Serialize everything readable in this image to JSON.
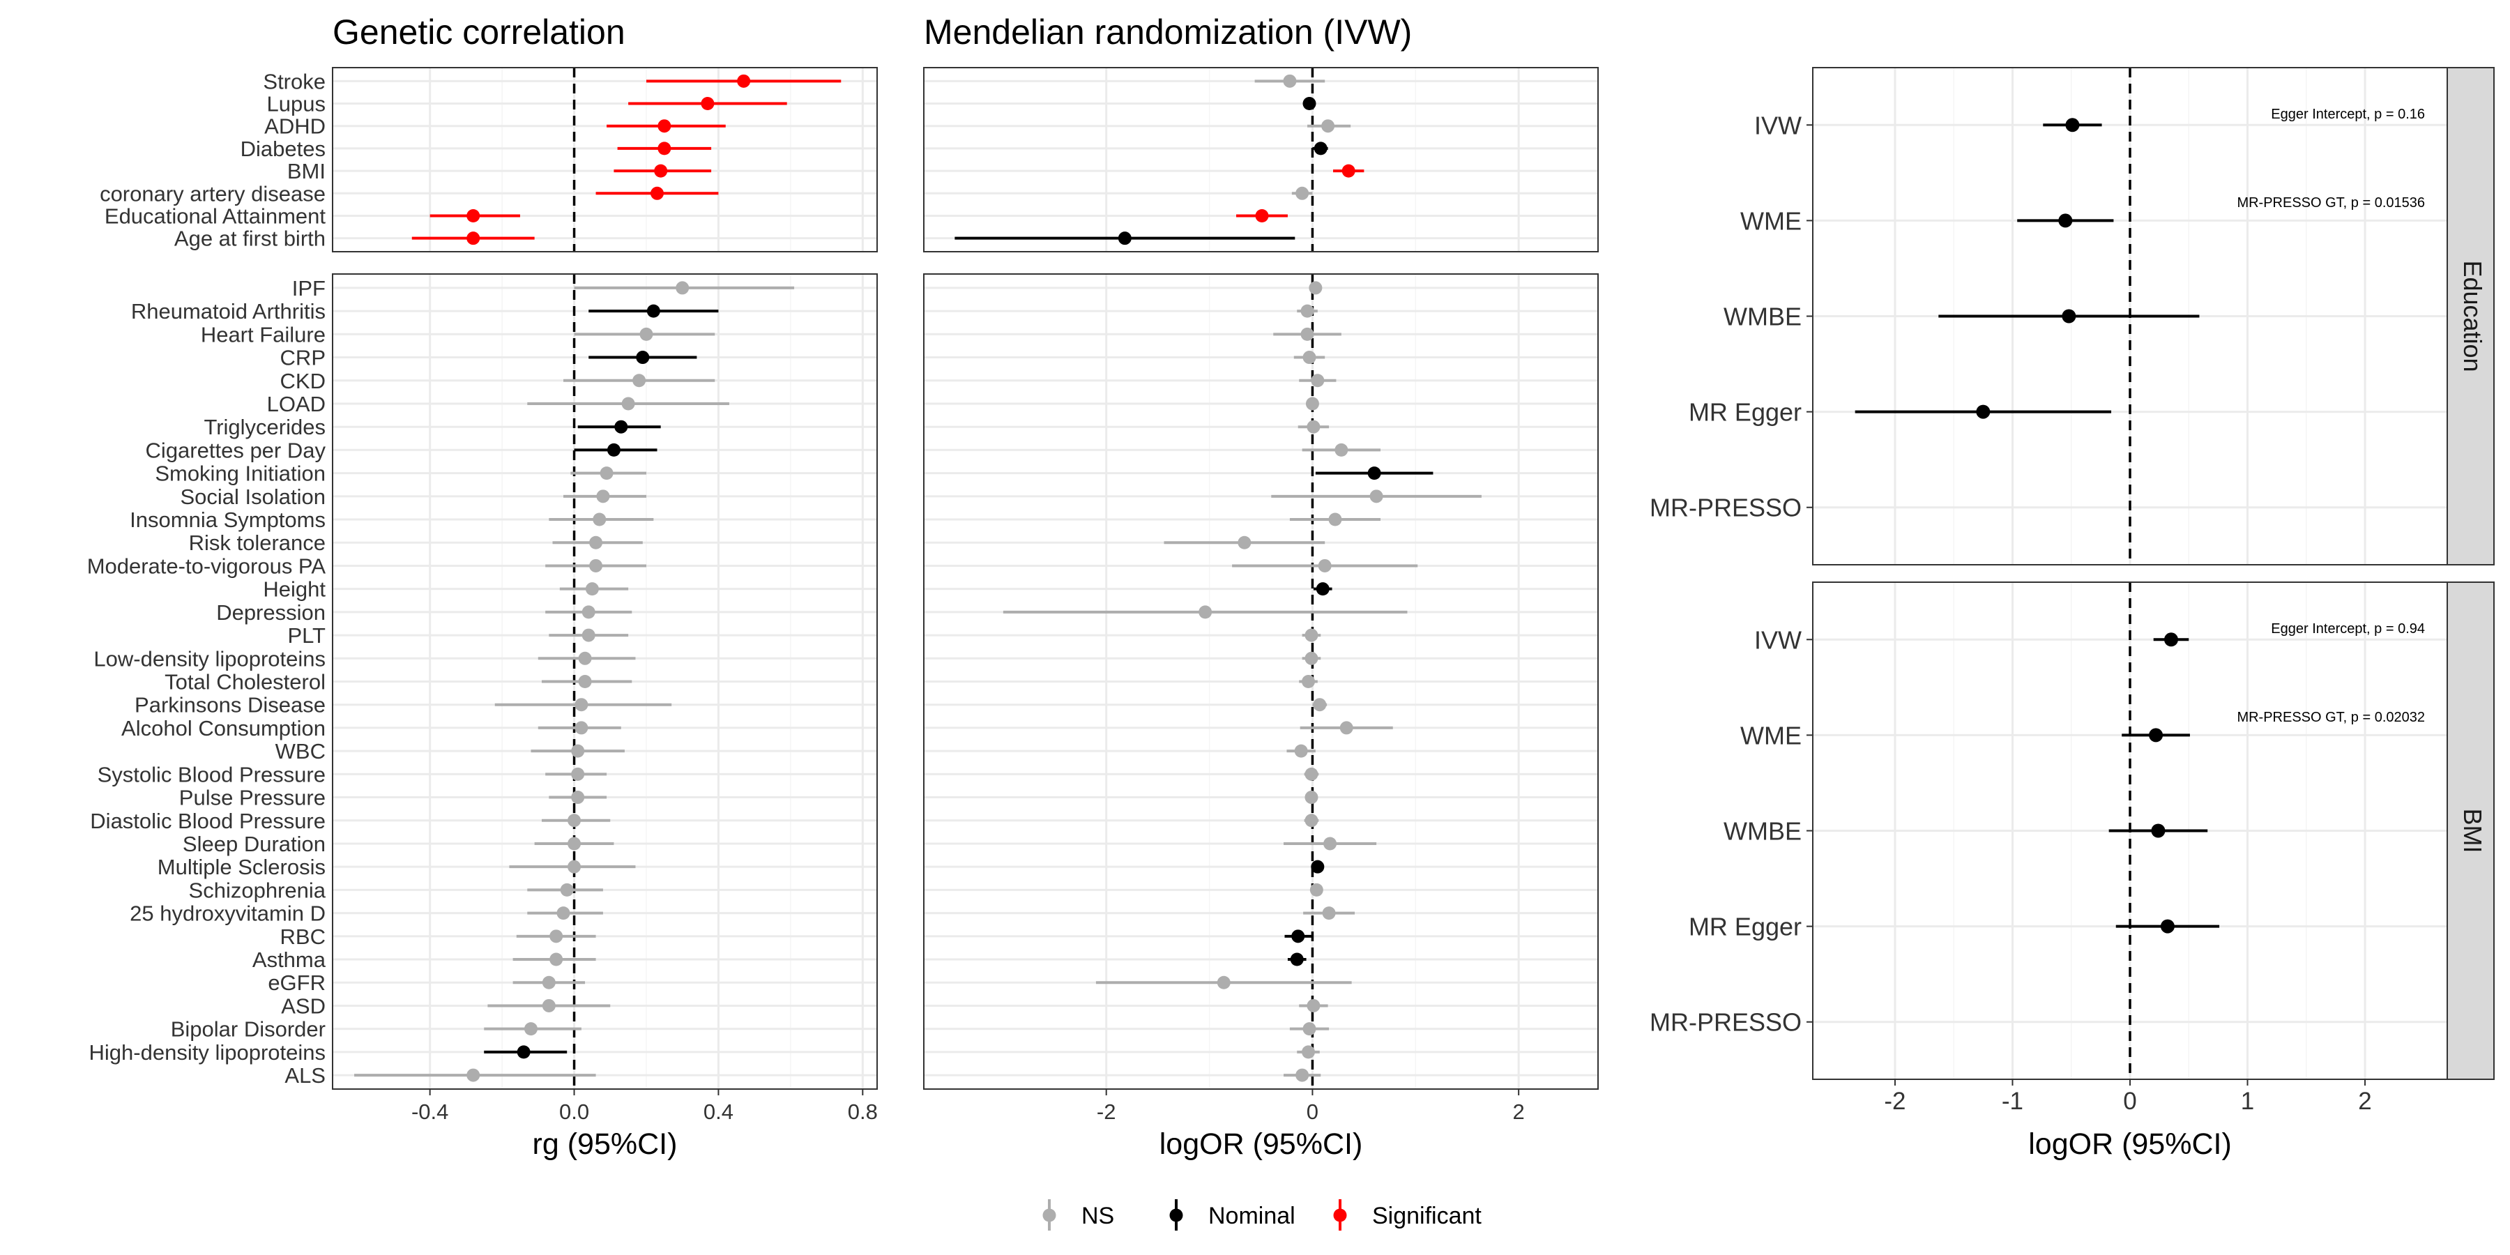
{
  "legend": {
    "items": [
      {
        "label": "NS",
        "color": "#ADADAD"
      },
      {
        "label": "Nominal",
        "color": "#000000"
      },
      {
        "label": "Significant",
        "color": "#FF0000"
      }
    ]
  },
  "chart_data": [
    {
      "type": "forest",
      "title": "Genetic correlation",
      "xlabel": "rg (95%CI)",
      "xlim": [
        -0.67,
        0.84
      ],
      "xticks": [
        -0.4,
        0.0,
        0.4,
        0.8
      ],
      "xtick_labels": [
        "-0.4",
        "0.0",
        "0.4",
        "0.8"
      ],
      "reference_line": 0,
      "panels": [
        {
          "rows": [
            {
              "label": "Stroke",
              "est": 0.47,
              "lo": 0.2,
              "hi": 0.74,
              "status": "Significant"
            },
            {
              "label": "Lupus",
              "est": 0.37,
              "lo": 0.15,
              "hi": 0.59,
              "status": "Significant"
            },
            {
              "label": "ADHD",
              "est": 0.25,
              "lo": 0.09,
              "hi": 0.42,
              "status": "Significant"
            },
            {
              "label": "Diabetes",
              "est": 0.25,
              "lo": 0.12,
              "hi": 0.38,
              "status": "Significant"
            },
            {
              "label": "BMI",
              "est": 0.24,
              "lo": 0.11,
              "hi": 0.38,
              "status": "Significant"
            },
            {
              "label": "coronary artery disease",
              "est": 0.23,
              "lo": 0.06,
              "hi": 0.4,
              "status": "Significant"
            },
            {
              "label": "Educational Attainment",
              "est": -0.28,
              "lo": -0.4,
              "hi": -0.15,
              "status": "Significant"
            },
            {
              "label": "Age at first birth",
              "est": -0.28,
              "lo": -0.45,
              "hi": -0.11,
              "status": "Significant"
            }
          ]
        },
        {
          "rows": [
            {
              "label": "IPF",
              "est": 0.3,
              "lo": 0.0,
              "hi": 0.61,
              "status": "NS"
            },
            {
              "label": "Rheumatoid Arthritis",
              "est": 0.22,
              "lo": 0.04,
              "hi": 0.4,
              "status": "Nominal"
            },
            {
              "label": "Heart Failure",
              "est": 0.2,
              "lo": 0.0,
              "hi": 0.39,
              "status": "NS"
            },
            {
              "label": "CRP",
              "est": 0.19,
              "lo": 0.04,
              "hi": 0.34,
              "status": "Nominal"
            },
            {
              "label": "CKD",
              "est": 0.18,
              "lo": -0.03,
              "hi": 0.39,
              "status": "NS"
            },
            {
              "label": "LOAD",
              "est": 0.15,
              "lo": -0.13,
              "hi": 0.43,
              "status": "NS"
            },
            {
              "label": "Triglycerides",
              "est": 0.13,
              "lo": 0.01,
              "hi": 0.24,
              "status": "Nominal"
            },
            {
              "label": "Cigarettes per Day",
              "est": 0.11,
              "lo": 0.0,
              "hi": 0.23,
              "status": "Nominal"
            },
            {
              "label": "Smoking Initiation",
              "est": 0.09,
              "lo": -0.01,
              "hi": 0.2,
              "status": "NS"
            },
            {
              "label": "Social Isolation",
              "est": 0.08,
              "lo": -0.03,
              "hi": 0.2,
              "status": "NS"
            },
            {
              "label": "Insomnia Symptoms",
              "est": 0.07,
              "lo": -0.07,
              "hi": 0.22,
              "status": "NS"
            },
            {
              "label": "Risk tolerance",
              "est": 0.06,
              "lo": -0.06,
              "hi": 0.19,
              "status": "NS"
            },
            {
              "label": "Moderate-to-vigorous PA",
              "est": 0.06,
              "lo": -0.08,
              "hi": 0.2,
              "status": "NS"
            },
            {
              "label": "Height",
              "est": 0.05,
              "lo": -0.04,
              "hi": 0.15,
              "status": "NS"
            },
            {
              "label": "Depression",
              "est": 0.04,
              "lo": -0.08,
              "hi": 0.16,
              "status": "NS"
            },
            {
              "label": "PLT",
              "est": 0.04,
              "lo": -0.07,
              "hi": 0.15,
              "status": "NS"
            },
            {
              "label": "Low-density lipoproteins",
              "est": 0.03,
              "lo": -0.1,
              "hi": 0.17,
              "status": "NS"
            },
            {
              "label": "Total Cholesterol",
              "est": 0.03,
              "lo": -0.09,
              "hi": 0.16,
              "status": "NS"
            },
            {
              "label": "Parkinsons Disease",
              "est": 0.02,
              "lo": -0.22,
              "hi": 0.27,
              "status": "NS"
            },
            {
              "label": "Alcohol Consumption",
              "est": 0.02,
              "lo": -0.1,
              "hi": 0.13,
              "status": "NS"
            },
            {
              "label": "WBC",
              "est": 0.01,
              "lo": -0.12,
              "hi": 0.14,
              "status": "NS"
            },
            {
              "label": "Systolic Blood Pressure",
              "est": 0.01,
              "lo": -0.08,
              "hi": 0.09,
              "status": "NS"
            },
            {
              "label": "Pulse Pressure",
              "est": 0.01,
              "lo": -0.07,
              "hi": 0.09,
              "status": "NS"
            },
            {
              "label": "Diastolic Blood Pressure",
              "est": 0.0,
              "lo": -0.09,
              "hi": 0.1,
              "status": "NS"
            },
            {
              "label": "Sleep Duration",
              "est": 0.0,
              "lo": -0.11,
              "hi": 0.11,
              "status": "NS"
            },
            {
              "label": "Multiple Sclerosis",
              "est": 0.0,
              "lo": -0.18,
              "hi": 0.17,
              "status": "NS"
            },
            {
              "label": "Schizophrenia",
              "est": -0.02,
              "lo": -0.13,
              "hi": 0.08,
              "status": "NS"
            },
            {
              "label": "25 hydroxyvitamin D",
              "est": -0.03,
              "lo": -0.13,
              "hi": 0.08,
              "status": "NS"
            },
            {
              "label": "RBC",
              "est": -0.05,
              "lo": -0.16,
              "hi": 0.06,
              "status": "NS"
            },
            {
              "label": "Asthma",
              "est": -0.05,
              "lo": -0.17,
              "hi": 0.06,
              "status": "NS"
            },
            {
              "label": "eGFR",
              "est": -0.07,
              "lo": -0.17,
              "hi": 0.03,
              "status": "NS"
            },
            {
              "label": "ASD",
              "est": -0.07,
              "lo": -0.24,
              "hi": 0.1,
              "status": "NS"
            },
            {
              "label": "Bipolar Disorder",
              "est": -0.12,
              "lo": -0.25,
              "hi": 0.02,
              "status": "NS"
            },
            {
              "label": "High-density lipoproteins",
              "est": -0.14,
              "lo": -0.25,
              "hi": -0.02,
              "status": "Nominal"
            },
            {
              "label": "ALS",
              "est": -0.28,
              "lo": -0.61,
              "hi": 0.06,
              "status": "NS"
            }
          ]
        }
      ]
    },
    {
      "type": "forest",
      "title": "Mendelian randomization (IVW)",
      "xlabel": "logOR (95%CI)",
      "xlim": [
        -3.77,
        2.77
      ],
      "xticks": [
        -2,
        0,
        2
      ],
      "xtick_labels": [
        "-2",
        "0",
        "2"
      ],
      "reference_line": 0,
      "panels": [
        {
          "rows": [
            {
              "label": "Stroke",
              "est": -0.22,
              "lo": -0.56,
              "hi": 0.12,
              "status": "NS"
            },
            {
              "label": "Lupus",
              "est": -0.03,
              "lo": -0.08,
              "hi": 0.02,
              "status": "Nominal"
            },
            {
              "label": "ADHD",
              "est": 0.15,
              "lo": -0.05,
              "hi": 0.37,
              "status": "NS"
            },
            {
              "label": "Diabetes",
              "est": 0.08,
              "lo": 0.0,
              "hi": 0.15,
              "status": "Nominal"
            },
            {
              "label": "BMI",
              "est": 0.35,
              "lo": 0.2,
              "hi": 0.5,
              "status": "Significant"
            },
            {
              "label": "coronary artery disease",
              "est": -0.1,
              "lo": -0.2,
              "hi": 0.0,
              "status": "NS"
            },
            {
              "label": "Educational Attainment",
              "est": -0.49,
              "lo": -0.74,
              "hi": -0.24,
              "status": "Significant"
            },
            {
              "label": "Age at first birth",
              "est": -1.82,
              "lo": -3.47,
              "hi": -0.17,
              "status": "Nominal"
            }
          ]
        },
        {
          "rows": [
            {
              "label": "IPF",
              "est": 0.03,
              "lo": -0.01,
              "hi": 0.07,
              "status": "NS"
            },
            {
              "label": "Rheumatoid Arthritis",
              "est": -0.05,
              "lo": -0.15,
              "hi": 0.05,
              "status": "NS"
            },
            {
              "label": "Heart Failure",
              "est": -0.05,
              "lo": -0.38,
              "hi": 0.28,
              "status": "NS"
            },
            {
              "label": "CRP",
              "est": -0.03,
              "lo": -0.18,
              "hi": 0.12,
              "status": "NS"
            },
            {
              "label": "CKD",
              "est": 0.05,
              "lo": -0.13,
              "hi": 0.23,
              "status": "NS"
            },
            {
              "label": "LOAD",
              "est": 0.0,
              "lo": -0.05,
              "hi": 0.05,
              "status": "NS"
            },
            {
              "label": "Triglycerides",
              "est": 0.01,
              "lo": -0.14,
              "hi": 0.16,
              "status": "NS"
            },
            {
              "label": "Cigarettes per Day",
              "est": 0.28,
              "lo": -0.1,
              "hi": 0.66,
              "status": "NS"
            },
            {
              "label": "Smoking Initiation",
              "est": 0.6,
              "lo": 0.03,
              "hi": 1.17,
              "status": "Nominal"
            },
            {
              "label": "Social Isolation",
              "est": 0.62,
              "lo": -0.4,
              "hi": 1.64,
              "status": "NS"
            },
            {
              "label": "Insomnia Symptoms",
              "est": 0.22,
              "lo": -0.22,
              "hi": 0.66,
              "status": "NS"
            },
            {
              "label": "Risk tolerance",
              "est": -0.66,
              "lo": -1.44,
              "hi": 0.12,
              "status": "NS"
            },
            {
              "label": "Moderate-to-vigorous PA",
              "est": 0.12,
              "lo": -0.78,
              "hi": 1.02,
              "status": "NS"
            },
            {
              "label": "Height",
              "est": 0.1,
              "lo": 0.01,
              "hi": 0.19,
              "status": "Nominal"
            },
            {
              "label": "Depression",
              "est": -1.04,
              "lo": -3.0,
              "hi": 0.92,
              "status": "NS"
            },
            {
              "label": "PLT",
              "est": -0.01,
              "lo": -0.1,
              "hi": 0.08,
              "status": "NS"
            },
            {
              "label": "Low-density lipoproteins",
              "est": -0.01,
              "lo": -0.1,
              "hi": 0.08,
              "status": "NS"
            },
            {
              "label": "Total Cholesterol",
              "est": -0.04,
              "lo": -0.13,
              "hi": 0.05,
              "status": "NS"
            },
            {
              "label": "Parkinsons Disease",
              "est": 0.07,
              "lo": 0.0,
              "hi": 0.14,
              "status": "NS"
            },
            {
              "label": "Alcohol Consumption",
              "est": 0.33,
              "lo": -0.12,
              "hi": 0.78,
              "status": "NS"
            },
            {
              "label": "WBC",
              "est": -0.11,
              "lo": -0.25,
              "hi": 0.03,
              "status": "NS"
            },
            {
              "label": "Systolic Blood Pressure",
              "est": -0.01,
              "lo": -0.08,
              "hi": 0.06,
              "status": "NS"
            },
            {
              "label": "Pulse Pressure",
              "est": -0.01,
              "lo": -0.07,
              "hi": 0.05,
              "status": "NS"
            },
            {
              "label": "Diastolic Blood Pressure",
              "est": -0.01,
              "lo": -0.08,
              "hi": 0.06,
              "status": "NS"
            },
            {
              "label": "Sleep Duration",
              "est": 0.17,
              "lo": -0.28,
              "hi": 0.62,
              "status": "NS"
            },
            {
              "label": "Multiple Sclerosis",
              "est": 0.05,
              "lo": 0.01,
              "hi": 0.09,
              "status": "Nominal"
            },
            {
              "label": "Schizophrenia",
              "est": 0.04,
              "lo": -0.01,
              "hi": 0.09,
              "status": "NS"
            },
            {
              "label": "25 hydroxyvitamin D",
              "est": 0.16,
              "lo": -0.09,
              "hi": 0.41,
              "status": "NS"
            },
            {
              "label": "RBC",
              "est": -0.14,
              "lo": -0.27,
              "hi": -0.01,
              "status": "Nominal"
            },
            {
              "label": "Asthma",
              "est": -0.15,
              "lo": -0.24,
              "hi": -0.06,
              "status": "Nominal"
            },
            {
              "label": "eGFR",
              "est": -0.86,
              "lo": -2.1,
              "hi": 0.38,
              "status": "NS"
            },
            {
              "label": "ASD",
              "est": 0.01,
              "lo": -0.13,
              "hi": 0.15,
              "status": "NS"
            },
            {
              "label": "Bipolar Disorder",
              "est": -0.03,
              "lo": -0.22,
              "hi": 0.16,
              "status": "NS"
            },
            {
              "label": "High-density lipoproteins",
              "est": -0.04,
              "lo": -0.15,
              "hi": 0.07,
              "status": "NS"
            },
            {
              "label": "ALS",
              "est": -0.1,
              "lo": -0.28,
              "hi": 0.08,
              "status": "NS"
            }
          ]
        }
      ]
    },
    {
      "type": "forest",
      "title": "",
      "xlabel": "logOR (95%CI)",
      "xlim": [
        -2.7,
        2.7
      ],
      "xticks": [
        -2,
        -1,
        0,
        1,
        2
      ],
      "xtick_labels": [
        "-2",
        "-1",
        "0",
        "1",
        "2"
      ],
      "reference_line": 0,
      "categories": [
        "IVW",
        "WME",
        "WMBE",
        "MR Egger",
        "MR-PRESSO"
      ],
      "facets": [
        {
          "strip": "Education",
          "annotations": [
            "Egger Intercept, p = 0.16",
            "MR-PRESSO GT, p = 0.01536"
          ],
          "rows": [
            {
              "label": "IVW",
              "est": -0.49,
              "lo": -0.74,
              "hi": -0.24
            },
            {
              "label": "WME",
              "est": -0.55,
              "lo": -0.96,
              "hi": -0.14
            },
            {
              "label": "WMBE",
              "est": -0.52,
              "lo": -1.63,
              "hi": 0.59
            },
            {
              "label": "MR Egger",
              "est": -1.25,
              "lo": -2.34,
              "hi": -0.16
            },
            {
              "label": "MR-PRESSO",
              "est": null,
              "lo": null,
              "hi": null
            }
          ]
        },
        {
          "strip": "BMI",
          "annotations": [
            "Egger Intercept, p = 0.94",
            "MR-PRESSO GT, p = 0.02032"
          ],
          "rows": [
            {
              "label": "IVW",
              "est": 0.35,
              "lo": 0.2,
              "hi": 0.5
            },
            {
              "label": "WME",
              "est": 0.22,
              "lo": -0.07,
              "hi": 0.51
            },
            {
              "label": "WMBE",
              "est": 0.24,
              "lo": -0.18,
              "hi": 0.66
            },
            {
              "label": "MR Egger",
              "est": 0.32,
              "lo": -0.12,
              "hi": 0.76
            },
            {
              "label": "MR-PRESSO",
              "est": null,
              "lo": null,
              "hi": null
            }
          ]
        }
      ]
    }
  ]
}
